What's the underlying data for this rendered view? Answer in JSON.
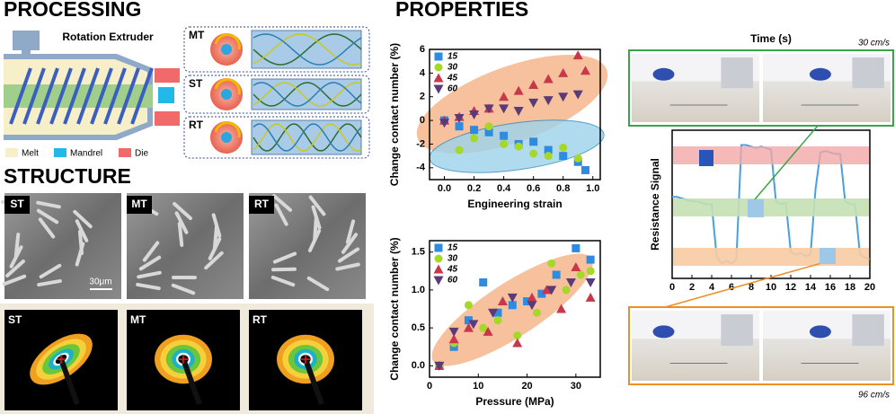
{
  "processing": {
    "title": "PROCESSING",
    "extruder_label": "Rotation Extruder",
    "legend": [
      "Melt",
      "Mandrel",
      "Die"
    ],
    "modes": [
      "MT",
      "ST",
      "RT"
    ]
  },
  "structure": {
    "title": "STRUCTURE",
    "sem_labels": [
      "ST",
      "MT",
      "RT"
    ],
    "scale_bar": "30μm",
    "saxs_labels": [
      "ST",
      "MT",
      "RT"
    ]
  },
  "properties": {
    "title": "PROPERTIES",
    "speeds": [
      "30 cm/s",
      "96 cm/s"
    ],
    "charts": [
      {
        "type": "scatter",
        "xlabel": "Engineering strain",
        "ylabel": "Change contact number (%)",
        "xlim": [
          -0.1,
          1.05
        ],
        "ylim": [
          -5,
          6
        ],
        "xticks": [
          {
            "value": 0,
            "label": "0.0"
          },
          0.2,
          0.4,
          0.6,
          0.8,
          {
            "value": 1,
            "label": "1.0"
          }
        ],
        "yticks": [
          -4,
          -2,
          0,
          2,
          4,
          6
        ],
        "series": [
          {
            "name": "15",
            "color": "#2e8be0",
            "marker": "square",
            "x": [
              0,
              0.1,
              0.2,
              0.3,
              0.4,
              0.5,
              0.6,
              0.7,
              0.8,
              0.9,
              0.95
            ],
            "values": [
              0,
              -0.5,
              -0.8,
              -1,
              -1.3,
              -2,
              -1.8,
              -2.5,
              -3,
              -3.5,
              -4.2
            ]
          },
          {
            "name": "30",
            "color": "#a6d82a",
            "marker": "circle",
            "x": [
              0.1,
              0.2,
              0.3,
              0.4,
              0.5,
              0.6,
              0.7,
              0.8,
              0.9
            ],
            "values": [
              -2.5,
              -1.5,
              -0.5,
              -2,
              -2.2,
              -2.8,
              -3,
              -2.3,
              -3.2
            ]
          },
          {
            "name": "45",
            "color": "#c8374a",
            "marker": "triangle",
            "x": [
              0,
              0.1,
              0.2,
              0.3,
              0.4,
              0.5,
              0.6,
              0.7,
              0.8,
              0.9,
              0.95
            ],
            "values": [
              0,
              0.3,
              0.8,
              1,
              2,
              2.5,
              3,
              3.5,
              4,
              5.5,
              4.2
            ]
          },
          {
            "name": "60",
            "color": "#5b3a7a",
            "marker": "down-triangle",
            "x": [
              0,
              0.1,
              0.2,
              0.3,
              0.4,
              0.5,
              0.6,
              0.7,
              0.8,
              0.9
            ],
            "values": [
              -0.2,
              0.2,
              0.5,
              1,
              1,
              0.8,
              1.5,
              1.7,
              2,
              2.2
            ]
          }
        ]
      },
      {
        "type": "scatter",
        "xlabel": "Pressure (MPa)",
        "ylabel": "Change contact number (%)",
        "xlim": [
          0,
          35
        ],
        "ylim": [
          -0.15,
          1.65
        ],
        "xticks": [
          0,
          10,
          20,
          30
        ],
        "yticks": [
          {
            "value": 0,
            "label": "0.0"
          },
          0.5,
          {
            "value": 1,
            "label": "1.0"
          },
          1.5
        ],
        "series": [
          {
            "name": "15",
            "color": "#2e8be0",
            "marker": "square",
            "x": [
              2,
              5,
              8,
              11,
              14,
              17,
              20,
              23,
              26,
              30,
              33
            ],
            "values": [
              0,
              0.25,
              0.6,
              1.1,
              0.7,
              0.8,
              0.85,
              0.95,
              1.2,
              1.55,
              1.4
            ]
          },
          {
            "name": "30",
            "color": "#a6d82a",
            "marker": "circle",
            "x": [
              2,
              5,
              8,
              11,
              14,
              18,
              22,
              25,
              28,
              31,
              33
            ],
            "values": [
              0,
              0.3,
              0.8,
              0.5,
              0.6,
              0.4,
              0.7,
              1.35,
              1.0,
              1.2,
              1.25
            ]
          },
          {
            "name": "45",
            "color": "#c8374a",
            "marker": "triangle",
            "x": [
              2,
              5,
              8,
              12,
              15,
              18,
              21,
              24,
              27,
              30,
              33
            ],
            "values": [
              0,
              0.35,
              0.5,
              0.45,
              0.85,
              0.3,
              0.9,
              1.0,
              0.75,
              1.3,
              0.9
            ]
          },
          {
            "name": "60",
            "color": "#5b3a7a",
            "marker": "down-triangle",
            "x": [
              2,
              5,
              9,
              13,
              17,
              21,
              25,
              29,
              33
            ],
            "values": [
              0,
              0.45,
              0.55,
              0.7,
              0.9,
              0.8,
              1.0,
              1.1,
              1.1
            ]
          }
        ]
      },
      {
        "type": "line",
        "xlabel": "Time (s)",
        "ylabel": "Resistance Signal",
        "xlim": [
          0,
          20
        ],
        "ylim": [
          0,
          10
        ],
        "xticks": [
          0,
          2,
          4,
          6,
          8,
          10,
          12,
          14,
          16,
          18,
          20
        ],
        "series": [
          {
            "color": "#4a9fe0",
            "x": [
              0,
              0.5,
              1,
              1.5,
              2,
              2.5,
              3,
              3.5,
              4,
              4.5,
              5,
              5.5,
              6,
              6.5,
              7,
              7.5,
              8,
              8.5,
              9,
              9.5,
              10,
              10.5,
              11,
              11.5,
              12,
              12.5,
              13,
              13.5,
              14,
              14.5,
              15,
              15.5,
              16,
              16.5,
              17,
              17.5,
              18,
              18.5,
              19,
              19.5,
              20
            ],
            "values": [
              5.5,
              5.5,
              5.4,
              5.3,
              5.2,
              5.2,
              5.1,
              5.0,
              5.0,
              1.5,
              1.0,
              1.2,
              1.0,
              1.3,
              9.0,
              9.0,
              8.9,
              8.8,
              8.9,
              8.8,
              8.7,
              5.2,
              5.0,
              5.1,
              1.8,
              1.6,
              1.7,
              1.5,
              1.6,
              6.0,
              8.5,
              8.6,
              8.5,
              8.4,
              8.4,
              5.2,
              5.0,
              5.0,
              1.6,
              1.4,
              1.3
            ]
          }
        ]
      }
    ]
  }
}
